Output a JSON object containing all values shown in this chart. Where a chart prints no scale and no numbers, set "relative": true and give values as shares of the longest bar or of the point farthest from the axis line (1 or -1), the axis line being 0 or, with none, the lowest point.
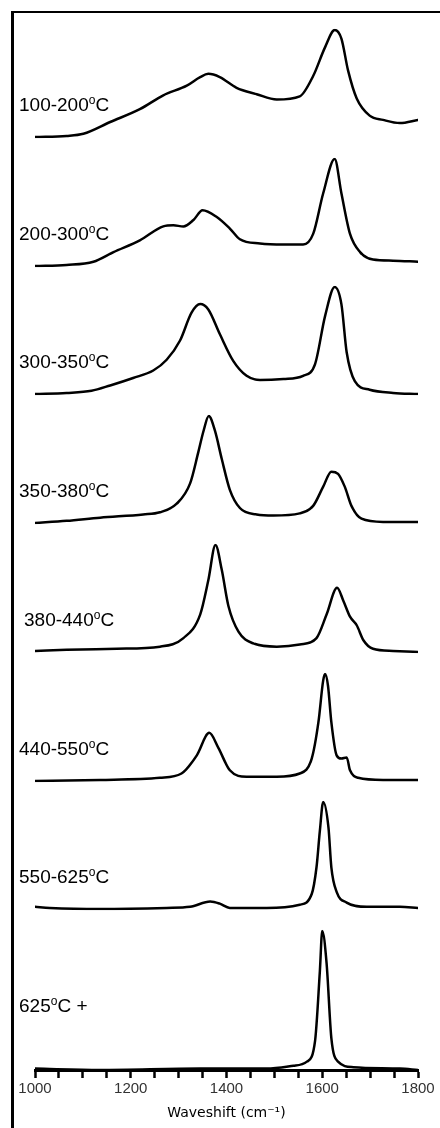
{
  "chart_data": [
    {
      "type": "line",
      "relative": true,
      "xlim": [
        1000,
        1800
      ],
      "tick_labels": false,
      "legend": false,
      "marker": "none",
      "line_style": "solid",
      "series": [
        {
          "name": "100-200$^{o}$C",
          "color": "#000000",
          "x": [
            1000,
            1066,
            1101,
            1157,
            1219,
            1268,
            1317,
            1345,
            1362,
            1386,
            1421,
            1463,
            1505,
            1553,
            1581,
            1606,
            1626,
            1640,
            1654,
            1672,
            1699,
            1727,
            1762,
            1800
          ],
          "values": [
            0,
            0.01,
            0.03,
            0.14,
            0.26,
            0.39,
            0.48,
            0.56,
            0.59,
            0.56,
            0.46,
            0.4,
            0.35,
            0.38,
            0.57,
            0.84,
            1,
            0.92,
            0.62,
            0.36,
            0.2,
            0.16,
            0.13,
            0.16
          ]
        }
      ]
    },
    {
      "type": "line",
      "relative": true,
      "xlim": [
        1000,
        1800
      ],
      "tick_labels": false,
      "legend": false,
      "marker": "none",
      "line_style": "solid",
      "series": [
        {
          "name": "200-300$^{o}$C",
          "color": "#000000",
          "x": [
            1000,
            1066,
            1122,
            1164,
            1219,
            1268,
            1289,
            1310,
            1331,
            1350,
            1379,
            1407,
            1428,
            1470,
            1519,
            1560,
            1581,
            1602,
            1626,
            1640,
            1658,
            1679,
            1706,
            1748,
            1800
          ],
          "values": [
            0,
            0.01,
            0.04,
            0.13,
            0.24,
            0.37,
            0.38,
            0.37,
            0.43,
            0.52,
            0.46,
            0.35,
            0.25,
            0.21,
            0.2,
            0.2,
            0.3,
            0.68,
            1,
            0.68,
            0.3,
            0.13,
            0.06,
            0.05,
            0.04
          ]
        }
      ]
    },
    {
      "type": "line",
      "relative": true,
      "xlim": [
        1000,
        1800
      ],
      "tick_labels": false,
      "legend": false,
      "marker": "none",
      "line_style": "solid",
      "series": [
        {
          "name": "300-350$^{o}$C",
          "color": "#000000",
          "x": [
            1000,
            1066,
            1118,
            1157,
            1205,
            1247,
            1275,
            1303,
            1327,
            1345,
            1362,
            1386,
            1414,
            1442,
            1470,
            1519,
            1560,
            1585,
            1606,
            1626,
            1640,
            1651,
            1668,
            1699,
            1748,
            1800
          ],
          "values": [
            0,
            0.01,
            0.03,
            0.08,
            0.15,
            0.22,
            0.32,
            0.5,
            0.76,
            0.84,
            0.79,
            0.56,
            0.31,
            0.17,
            0.13,
            0.14,
            0.17,
            0.28,
            0.73,
            1,
            0.84,
            0.39,
            0.12,
            0.04,
            0.01,
            0
          ]
        }
      ]
    },
    {
      "type": "line",
      "relative": true,
      "xlim": [
        1000,
        1800
      ],
      "tick_labels": false,
      "legend": false,
      "marker": "none",
      "line_style": "solid",
      "series": [
        {
          "name": "350-380$^{o}$C",
          "color": "#000000",
          "x": [
            1000,
            1066,
            1136,
            1226,
            1261,
            1296,
            1324,
            1341,
            1352,
            1363,
            1376,
            1390,
            1407,
            1428,
            1463,
            1498,
            1553,
            1581,
            1602,
            1619,
            1633,
            1647,
            1661,
            1682,
            1727,
            1800
          ],
          "values": [
            0,
            0.02,
            0.05,
            0.08,
            0.1,
            0.18,
            0.37,
            0.66,
            0.86,
            1,
            0.86,
            0.6,
            0.31,
            0.14,
            0.08,
            0.07,
            0.09,
            0.16,
            0.34,
            0.48,
            0.46,
            0.34,
            0.16,
            0.04,
            0.01,
            0.01
          ]
        }
      ]
    },
    {
      "type": "line",
      "relative": true,
      "xlim": [
        1000,
        1800
      ],
      "tick_labels": false,
      "legend": false,
      "marker": "none",
      "line_style": "solid",
      "series": [
        {
          "name": "380-440$^{o}$C",
          "color": "#000000",
          "x": [
            1000,
            1066,
            1171,
            1261,
            1310,
            1345,
            1362,
            1377,
            1390,
            1404,
            1425,
            1456,
            1505,
            1553,
            1588,
            1609,
            1631,
            1644,
            1658,
            1672,
            1686,
            1706,
            1748,
            1800
          ],
          "values": [
            0.01,
            0.02,
            0.03,
            0.05,
            0.13,
            0.35,
            0.67,
            1,
            0.77,
            0.43,
            0.19,
            0.08,
            0.05,
            0.07,
            0.13,
            0.35,
            0.6,
            0.48,
            0.33,
            0.25,
            0.11,
            0.03,
            0.01,
            0
          ]
        }
      ]
    },
    {
      "type": "line",
      "relative": true,
      "xlim": [
        1000,
        1800
      ],
      "tick_labels": false,
      "legend": false,
      "marker": "none",
      "line_style": "solid",
      "series": [
        {
          "name": "440-550$^{o}$C",
          "color": "#000000",
          "x": [
            1000,
            1136,
            1261,
            1306,
            1338,
            1364,
            1383,
            1407,
            1442,
            1505,
            1553,
            1578,
            1592,
            1602,
            1606,
            1612,
            1619,
            1630,
            1640,
            1651,
            1658,
            1675,
            1727,
            1800
          ],
          "values": [
            0,
            0.01,
            0.03,
            0.07,
            0.24,
            0.45,
            0.31,
            0.1,
            0.04,
            0.04,
            0.07,
            0.21,
            0.55,
            0.94,
            1,
            0.89,
            0.55,
            0.24,
            0.21,
            0.22,
            0.1,
            0.03,
            0.01,
            0.01
          ]
        }
      ]
    },
    {
      "type": "line",
      "relative": true,
      "xlim": [
        1000,
        1800
      ],
      "tick_labels": false,
      "legend": false,
      "marker": "none",
      "line_style": "solid",
      "series": [
        {
          "name": "550-625$^{o}$C",
          "color": "#000000",
          "x": [
            1000,
            1031,
            1136,
            1275,
            1324,
            1366,
            1386,
            1407,
            1484,
            1553,
            1578,
            1588,
            1595,
            1602,
            1613,
            1619,
            1630,
            1651,
            1693,
            1762,
            1800
          ],
          "values": [
            0.02,
            0.01,
            0,
            0.01,
            0.02,
            0.07,
            0.05,
            0.01,
            0.01,
            0.04,
            0.14,
            0.39,
            0.73,
            1,
            0.76,
            0.39,
            0.16,
            0.06,
            0.02,
            0.02,
            0.01
          ]
        }
      ]
    },
    {
      "type": "line",
      "relative": true,
      "xlim": [
        1000,
        1800
      ],
      "xticks": [
        1000,
        {
          "value": 1050,
          "label": null
        },
        {
          "value": 1100,
          "label": null
        },
        {
          "value": 1150,
          "label": null
        },
        1200,
        {
          "value": 1250,
          "label": null
        },
        {
          "value": 1300,
          "label": null
        },
        {
          "value": 1350,
          "label": null
        },
        1400,
        {
          "value": 1450,
          "label": null
        },
        {
          "value": 1500,
          "label": null
        },
        {
          "value": 1550,
          "label": null
        },
        1600,
        {
          "value": 1650,
          "label": null
        },
        {
          "value": 1700,
          "label": null
        },
        {
          "value": 1750,
          "label": null
        },
        1800
      ],
      "xlabel": "Waveshift (cm⁻¹)",
      "tick_labels": "x",
      "legend": false,
      "marker": "none",
      "line_style": "solid",
      "series": [
        {
          "name": "625$^{o}$C +",
          "color": "#000000",
          "x": [
            1000,
            1136,
            1345,
            1484,
            1540,
            1568,
            1585,
            1595,
            1600,
            1609,
            1619,
            1633,
            1665,
            1762,
            1800
          ],
          "values": [
            0.01,
            0,
            0.01,
            0.01,
            0.03,
            0.06,
            0.21,
            0.71,
            1,
            0.77,
            0.23,
            0.06,
            0.02,
            0.01,
            0
          ]
        }
      ]
    }
  ]
}
